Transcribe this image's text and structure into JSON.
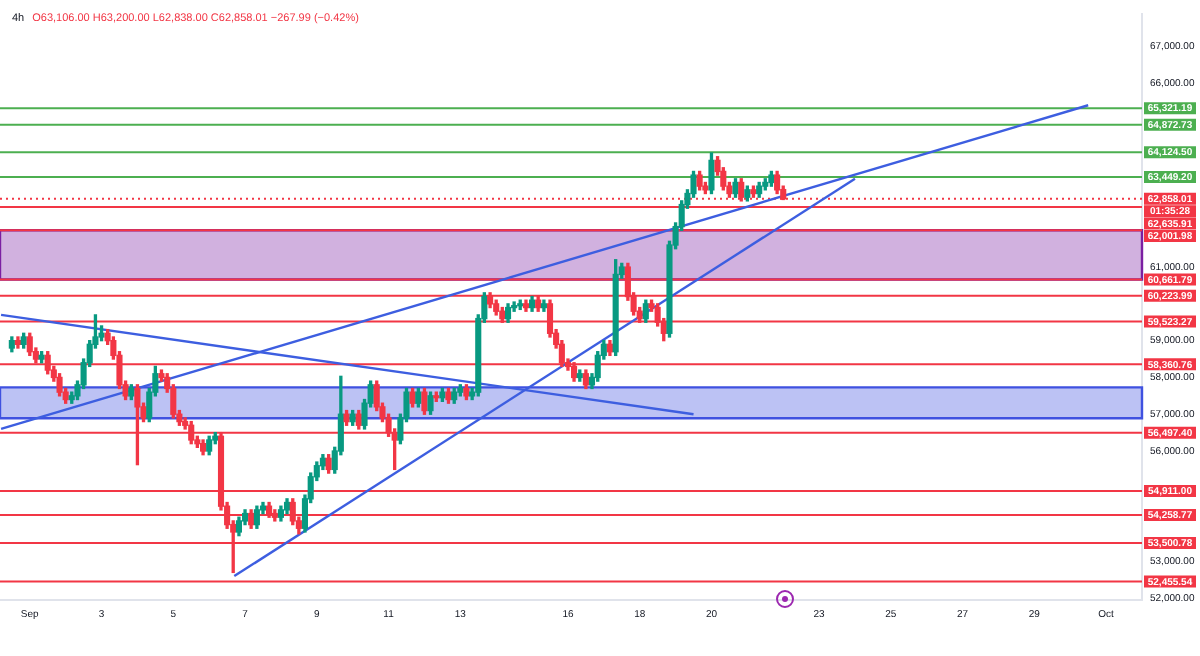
{
  "chart_data": {
    "type": "candlestick",
    "title": "4h",
    "subtitle": "O63,106.00 H63,200.00 L62,838.00 C62,858.01 −267.99 (−0.42%)",
    "x": [
      0.5,
      0.67,
      0.83,
      1,
      1.17,
      1.33,
      1.5,
      1.67,
      1.83,
      2,
      2.17,
      2.33,
      2.5,
      2.67,
      2.83,
      3,
      3.17,
      3.33,
      3.5,
      3.67,
      3.83,
      4,
      4.17,
      4.33,
      4.5,
      4.67,
      4.83,
      5,
      5.17,
      5.33,
      5.5,
      5.67,
      5.83,
      6,
      6.17,
      6.33,
      6.5,
      6.67,
      6.83,
      7,
      7.17,
      7.33,
      7.5,
      7.67,
      7.83,
      8,
      8.17,
      8.33,
      8.5,
      8.67,
      8.83,
      9,
      9.17,
      9.33,
      9.5,
      9.67,
      9.83,
      10,
      10.17,
      10.33,
      10.5,
      10.67,
      10.83,
      11,
      11.17,
      11.33,
      11.5,
      11.67,
      11.83,
      12,
      12.17,
      12.33,
      12.5,
      12.67,
      12.83,
      13,
      13.17,
      13.33,
      13.5,
      13.67,
      13.83,
      14,
      14.17,
      14.33,
      14.5,
      14.67,
      14.83,
      15,
      15.17,
      15.33,
      15.5,
      15.67,
      15.83,
      16,
      16.17,
      16.33,
      16.5,
      16.67,
      16.83,
      17,
      17.17,
      17.33,
      17.5,
      17.67,
      17.83,
      18,
      18.17,
      18.33,
      18.5,
      18.67,
      18.83,
      19,
      19.17,
      19.33,
      19.5,
      19.67,
      19.83,
      20,
      20.17,
      20.33,
      20.5,
      20.67,
      20.83,
      21,
      21.17,
      21.33,
      21.5,
      21.67,
      21.83,
      22
    ],
    "ohlc": [
      [
        58800,
        59100,
        58700,
        59000
      ],
      [
        59000,
        59100,
        58800,
        58900
      ],
      [
        58900,
        59200,
        58800,
        59100
      ],
      [
        59100,
        59200,
        58600,
        58700
      ],
      [
        58700,
        58800,
        58400,
        58500
      ],
      [
        58500,
        58700,
        58400,
        58600
      ],
      [
        58600,
        58700,
        58100,
        58200
      ],
      [
        58200,
        58300,
        57900,
        58000
      ],
      [
        58000,
        58100,
        57500,
        57600
      ],
      [
        57600,
        57700,
        57300,
        57400
      ],
      [
        57400,
        57600,
        57300,
        57500
      ],
      [
        57500,
        57900,
        57400,
        57800
      ],
      [
        57800,
        58500,
        57700,
        58400
      ],
      [
        58400,
        59000,
        58300,
        58900
      ],
      [
        58900,
        59700,
        58800,
        59100
      ],
      [
        59100,
        59400,
        59000,
        59200
      ],
      [
        59200,
        59300,
        58900,
        59000
      ],
      [
        59000,
        59100,
        58500,
        58600
      ],
      [
        58600,
        58700,
        57700,
        57800
      ],
      [
        57800,
        57900,
        57400,
        57500
      ],
      [
        57500,
        57800,
        57400,
        57700
      ],
      [
        57700,
        57800,
        55630,
        57200
      ],
      [
        57200,
        57300,
        56800,
        56900
      ],
      [
        56900,
        57700,
        56800,
        57600
      ],
      [
        57600,
        58300,
        57500,
        58100
      ],
      [
        58100,
        58200,
        57900,
        58000
      ],
      [
        58000,
        58100,
        57600,
        57700
      ],
      [
        57700,
        57800,
        56900,
        57000
      ],
      [
        57000,
        57100,
        56700,
        56800
      ],
      [
        56800,
        56900,
        56600,
        56700
      ],
      [
        56700,
        56800,
        56200,
        56300
      ],
      [
        56300,
        56400,
        56100,
        56200
      ],
      [
        56200,
        56300,
        55900,
        56000
      ],
      [
        56000,
        56400,
        55900,
        56300
      ],
      [
        56300,
        56500,
        56200,
        56400
      ],
      [
        56400,
        56500,
        54400,
        54500
      ],
      [
        54500,
        54600,
        53900,
        54000
      ],
      [
        54000,
        54100,
        52700,
        53800
      ],
      [
        53800,
        54200,
        53700,
        54100
      ],
      [
        54100,
        54400,
        54000,
        54300
      ],
      [
        54300,
        54400,
        53900,
        54000
      ],
      [
        54000,
        54500,
        53900,
        54400
      ],
      [
        54400,
        54600,
        54300,
        54500
      ],
      [
        54500,
        54600,
        54200,
        54300
      ],
      [
        54300,
        54400,
        54100,
        54200
      ],
      [
        54200,
        54500,
        54100,
        54400
      ],
      [
        54400,
        54700,
        54300,
        54600
      ],
      [
        54600,
        54700,
        54000,
        54100
      ],
      [
        54100,
        54200,
        53750,
        53900
      ],
      [
        53900,
        54800,
        53800,
        54700
      ],
      [
        54700,
        55400,
        54600,
        55300
      ],
      [
        55300,
        55700,
        55200,
        55600
      ],
      [
        55600,
        55900,
        55500,
        55800
      ],
      [
        55800,
        55900,
        55400,
        55500
      ],
      [
        55500,
        56100,
        55400,
        56000
      ],
      [
        56000,
        58030,
        55900,
        57000
      ],
      [
        57000,
        57100,
        56700,
        56800
      ],
      [
        56800,
        57100,
        56700,
        57000
      ],
      [
        57000,
        57100,
        56600,
        56700
      ],
      [
        56700,
        57400,
        56600,
        57300
      ],
      [
        57300,
        57900,
        57200,
        57800
      ],
      [
        57800,
        57900,
        57100,
        57200
      ],
      [
        57200,
        57300,
        56800,
        56900
      ],
      [
        56900,
        57000,
        56400,
        56500
      ],
      [
        56500,
        56600,
        55500,
        56300
      ],
      [
        56300,
        57000,
        56200,
        56900
      ],
      [
        56900,
        57700,
        56800,
        57600
      ],
      [
        57600,
        57700,
        57200,
        57300
      ],
      [
        57300,
        57700,
        57200,
        57600
      ],
      [
        57600,
        57700,
        57000,
        57100
      ],
      [
        57100,
        57600,
        57000,
        57500
      ],
      [
        57500,
        57600,
        57350,
        57450
      ],
      [
        57450,
        57700,
        57350,
        57600
      ],
      [
        57600,
        57700,
        57300,
        57400
      ],
      [
        57400,
        57700,
        57300,
        57600
      ],
      [
        57600,
        57800,
        57500,
        57700
      ],
      [
        57700,
        57800,
        57400,
        57500
      ],
      [
        57500,
        57700,
        57400,
        57600
      ],
      [
        57600,
        59700,
        57500,
        59600
      ],
      [
        59600,
        60300,
        59500,
        60200
      ],
      [
        60200,
        60300,
        59900,
        60000
      ],
      [
        60000,
        60100,
        59700,
        59800
      ],
      [
        59800,
        59900,
        59500,
        59600
      ],
      [
        59600,
        60000,
        59500,
        59900
      ],
      [
        59900,
        60050,
        59800,
        59950
      ],
      [
        59950,
        60100,
        59850,
        60000
      ],
      [
        60000,
        60100,
        59800,
        59900
      ],
      [
        59900,
        60200,
        59800,
        60100
      ],
      [
        60100,
        60200,
        59800,
        59900
      ],
      [
        59900,
        60100,
        59800,
        60000
      ],
      [
        60000,
        60100,
        59100,
        59200
      ],
      [
        59200,
        59300,
        58800,
        58900
      ],
      [
        58900,
        59000,
        58300,
        58400
      ],
      [
        58400,
        58500,
        58200,
        58300
      ],
      [
        58300,
        58400,
        57900,
        58000
      ],
      [
        58000,
        58200,
        57900,
        58100
      ],
      [
        58100,
        58200,
        57700,
        57800
      ],
      [
        57800,
        58100,
        57700,
        58000
      ],
      [
        58000,
        58700,
        57900,
        58600
      ],
      [
        58600,
        59000,
        58500,
        58900
      ],
      [
        58900,
        59000,
        58600,
        58700
      ],
      [
        58700,
        61200,
        58600,
        60800
      ],
      [
        60800,
        61100,
        60700,
        61000
      ],
      [
        61000,
        61100,
        60100,
        60200
      ],
      [
        60200,
        60300,
        59700,
        59800
      ],
      [
        59800,
        59900,
        59500,
        59600
      ],
      [
        59600,
        60100,
        59500,
        60000
      ],
      [
        60000,
        60100,
        59800,
        59900
      ],
      [
        59900,
        60000,
        59400,
        59500
      ],
      [
        59500,
        59600,
        59000,
        59200
      ],
      [
        59200,
        61700,
        59100,
        61600
      ],
      [
        61600,
        62200,
        61500,
        62100
      ],
      [
        62100,
        62800,
        62000,
        62700
      ],
      [
        62700,
        63100,
        62600,
        63000
      ],
      [
        63000,
        63600,
        62900,
        63500
      ],
      [
        63500,
        63600,
        63100,
        63200
      ],
      [
        63200,
        63300,
        63000,
        63100
      ],
      [
        63100,
        64100,
        63000,
        63900
      ],
      [
        63900,
        64000,
        63500,
        63600
      ],
      [
        63600,
        63700,
        63100,
        63200
      ],
      [
        63200,
        63300,
        62900,
        63000
      ],
      [
        63000,
        63400,
        62900,
        63300
      ],
      [
        63300,
        63400,
        62800,
        62900
      ],
      [
        62900,
        63200,
        62800,
        63100
      ],
      [
        63100,
        63200,
        62900,
        63000
      ],
      [
        63000,
        63300,
        62900,
        63200
      ],
      [
        63200,
        63400,
        63100,
        63300
      ],
      [
        63300,
        63600,
        63200,
        63500
      ],
      [
        63500,
        63600,
        63000,
        63100
      ],
      [
        63106,
        63200,
        62838,
        62858.01
      ]
    ],
    "xlim": [
      0.17,
      32
    ],
    "xticks": [
      {
        "value": 1,
        "label": "Sep"
      },
      3,
      5,
      7,
      9,
      11,
      13,
      16,
      18,
      20,
      23,
      25,
      27,
      29,
      {
        "value": 31,
        "label": "Oct"
      }
    ],
    "ylim": [
      51950,
      67880
    ],
    "yticks": [
      {
        "value": 52000,
        "label": "52,000.00"
      },
      {
        "value": 53000,
        "label": "53,000.00"
      },
      {
        "value": 56000,
        "label": "56,000.00"
      },
      {
        "value": 57000,
        "label": "57,000.00"
      },
      {
        "value": 58000,
        "label": "58,000.00"
      },
      {
        "value": 59000,
        "label": "59,000.00"
      },
      {
        "value": 61000,
        "label": "61,000.00"
      },
      {
        "value": 66000,
        "label": "66,000.00"
      },
      {
        "value": 67000,
        "label": "67,000.00"
      }
    ],
    "grid": false,
    "series": [
      {
        "type": "line",
        "x": [
          0.2,
          30.5
        ],
        "values": [
          56600,
          65400
        ],
        "color": "#3d5ee0"
      },
      {
        "type": "line",
        "x": [
          6.7,
          24
        ],
        "values": [
          52600,
          63400
        ],
        "color": "#3d5ee0"
      },
      {
        "type": "line",
        "x": [
          0.2,
          19.5
        ],
        "values": [
          59700,
          57000
        ],
        "color": "#3d5ee0"
      }
    ],
    "ref_lines": [
      {
        "axis": "y",
        "value": 65321.19,
        "label": "65,321.19",
        "color": "#4caf50"
      },
      {
        "axis": "y",
        "value": 64872.73,
        "label": "64,872.73",
        "color": "#4caf50"
      },
      {
        "axis": "y",
        "value": 64124.5,
        "label": "64,124.50",
        "color": "#4caf50"
      },
      {
        "axis": "y",
        "value": 63449.2,
        "label": "63,449.20",
        "color": "#4caf50"
      },
      {
        "axis": "y",
        "value": 62858.01,
        "label": "62,858.01",
        "color": "#f23645",
        "line_style": "dotted"
      },
      {
        "axis": "y",
        "value": 62635.91,
        "label": "62,635.91",
        "color": "#f23645"
      },
      {
        "axis": "y",
        "value": 62001.98,
        "label": "62,001.98",
        "color": "#f23645"
      },
      {
        "axis": "y",
        "value": 60661.79,
        "label": "60,661.79",
        "color": "#f23645"
      },
      {
        "axis": "y",
        "value": 60223.99,
        "label": "60,223.99",
        "color": "#f23645"
      },
      {
        "axis": "y",
        "value": 59523.27,
        "label": "59,523.27",
        "color": "#f23645"
      },
      {
        "axis": "y",
        "value": 58360.76,
        "label": "58,360.76",
        "color": "#f23645"
      },
      {
        "axis": "y",
        "value": 56497.4,
        "label": "56,497.40",
        "color": "#f23645"
      },
      {
        "axis": "y",
        "value": 54911,
        "label": "54,911.00",
        "color": "#f23645"
      },
      {
        "axis": "y",
        "value": 54258.77,
        "label": "54,258.77",
        "color": "#f23645"
      },
      {
        "axis": "y",
        "value": 53500.78,
        "label": "53,500.78",
        "color": "#f23645"
      },
      {
        "axis": "y",
        "value": 52455.54,
        "label": "52,455.54",
        "color": "#f23645"
      }
    ],
    "bands": [
      {
        "axis": "y",
        "from": 60661.79,
        "to": 62001.98,
        "color": "#7b1fa2"
      },
      {
        "axis": "y",
        "from": 56889,
        "to": 57731,
        "color": "#3f51e0"
      }
    ],
    "annotations": [
      "01:35:28"
    ]
  }
}
